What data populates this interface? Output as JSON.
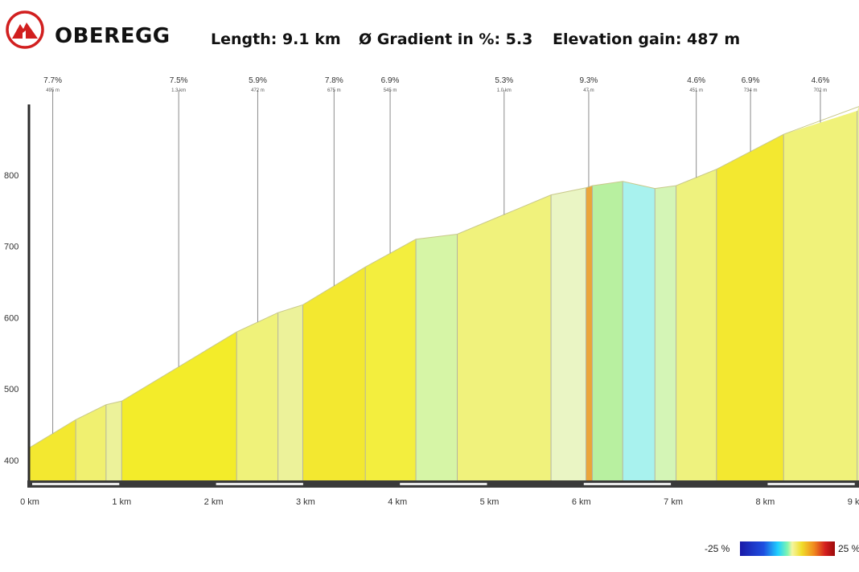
{
  "header": {
    "title": "OBEREGG",
    "length": "Length: 9.1 km",
    "gradient": "Ø Gradient in %: 5.3",
    "elevation_gain": "Elevation gain: 487 m"
  },
  "legend": {
    "min_label": "-25 %",
    "max_label": "25 %"
  },
  "chart_data": {
    "type": "area",
    "title": "",
    "xlabel": "",
    "ylabel": "",
    "x_ticks": [
      "0 km",
      "1 km",
      "2 km",
      "3 km",
      "4 km",
      "5 km",
      "6 km",
      "7 km",
      "8 km",
      "9 km"
    ],
    "y_ticks": [
      "400",
      "500",
      "600",
      "700",
      "800"
    ],
    "xlim": [
      0,
      9.15
    ],
    "ylim": [
      367,
      890
    ],
    "profile": [
      {
        "km": 0.0,
        "elev": 418
      },
      {
        "km": 0.5,
        "elev": 457
      },
      {
        "km": 0.83,
        "elev": 478
      },
      {
        "km": 1.0,
        "elev": 483
      },
      {
        "km": 2.25,
        "elev": 580
      },
      {
        "km": 2.7,
        "elev": 607
      },
      {
        "km": 2.97,
        "elev": 618
      },
      {
        "km": 3.65,
        "elev": 671
      },
      {
        "km": 4.2,
        "elev": 710
      },
      {
        "km": 4.65,
        "elev": 717
      },
      {
        "km": 5.67,
        "elev": 772
      },
      {
        "km": 6.05,
        "elev": 782
      },
      {
        "km": 6.12,
        "elev": 785
      },
      {
        "km": 6.45,
        "elev": 791
      },
      {
        "km": 6.8,
        "elev": 781
      },
      {
        "km": 7.03,
        "elev": 785
      },
      {
        "km": 7.47,
        "elev": 808
      },
      {
        "km": 8.2,
        "elev": 857
      },
      {
        "km": 9.15,
        "elev": 896
      }
    ],
    "segments": [
      {
        "from": 0.0,
        "to": 0.5,
        "color": "#f3e830"
      },
      {
        "from": 0.5,
        "to": 0.83,
        "color": "#f0f070"
      },
      {
        "from": 0.83,
        "to": 1.0,
        "color": "#ecf29a"
      },
      {
        "from": 1.0,
        "to": 2.25,
        "color": "#f3ec2a"
      },
      {
        "from": 2.25,
        "to": 2.7,
        "color": "#eff27a"
      },
      {
        "from": 2.7,
        "to": 2.97,
        "color": "#ecf29a"
      },
      {
        "from": 2.97,
        "to": 3.65,
        "color": "#f3e830"
      },
      {
        "from": 3.65,
        "to": 4.2,
        "color": "#f3ee3e"
      },
      {
        "from": 4.2,
        "to": 4.65,
        "color": "#d6f5a6"
      },
      {
        "from": 4.65,
        "to": 5.67,
        "color": "#f0f27c"
      },
      {
        "from": 5.67,
        "to": 6.05,
        "color": "#eaf5c4"
      },
      {
        "from": 6.05,
        "to": 6.12,
        "color": "#eba63a"
      },
      {
        "from": 6.12,
        "to": 6.45,
        "color": "#b8f0a0"
      },
      {
        "from": 6.45,
        "to": 6.8,
        "color": "#a8f2ee"
      },
      {
        "from": 6.8,
        "to": 7.03,
        "color": "#d4f5b6"
      },
      {
        "from": 7.03,
        "to": 7.47,
        "color": "#eef27e"
      },
      {
        "from": 7.47,
        "to": 8.2,
        "color": "#f3e830"
      },
      {
        "from": 8.2,
        "to": 9.0,
        "color": "#f0f27a"
      },
      {
        "from": 9.0,
        "to": 9.15,
        "color": "#ecf29a"
      }
    ],
    "annotations": [
      {
        "km": 0.25,
        "grade": "7.7%",
        "sub": "495 m"
      },
      {
        "km": 1.62,
        "grade": "7.5%",
        "sub": "1.3 km"
      },
      {
        "km": 2.48,
        "grade": "5.9%",
        "sub": "472 m"
      },
      {
        "km": 3.31,
        "grade": "7.8%",
        "sub": "675 m"
      },
      {
        "km": 3.92,
        "grade": "6.9%",
        "sub": "545 m"
      },
      {
        "km": 5.16,
        "grade": "5.3%",
        "sub": "1.0 km"
      },
      {
        "km": 6.08,
        "grade": "9.3%",
        "sub": "47 m"
      },
      {
        "km": 7.25,
        "grade": "4.6%",
        "sub": "451 m"
      },
      {
        "km": 7.84,
        "grade": "6.9%",
        "sub": "734 m"
      },
      {
        "km": 8.6,
        "grade": "4.6%",
        "sub": "702 m"
      }
    ]
  }
}
